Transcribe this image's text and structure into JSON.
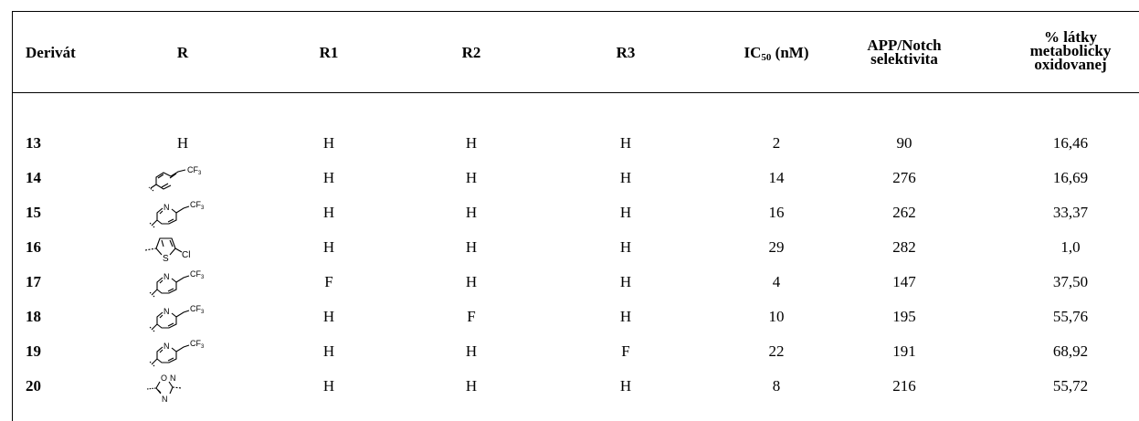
{
  "header": {
    "derivat": "Derivát",
    "r": "R",
    "r1": "R1",
    "r2": "R2",
    "r3": "R3",
    "ic50_main": "IC",
    "ic50_sub": "50",
    "ic50_unit": " (nM)",
    "selectivity_line1": "APP/Notch",
    "selectivity_line2": "selektivita",
    "oxidized_line1": "% látky",
    "oxidized_line2": "metabolicky",
    "oxidized_line3": "oxidovanej"
  },
  "rows": [
    {
      "id": "13",
      "r": "H",
      "r_struct": "none",
      "r1": "H",
      "r2": "H",
      "r3": "H",
      "ic50": "2",
      "sel": "90",
      "ox": "16,46"
    },
    {
      "id": "14",
      "r": "",
      "r_struct": "phenyl-cf3",
      "r1": "H",
      "r2": "H",
      "r3": "H",
      "ic50": "14",
      "sel": "276",
      "ox": "16,69"
    },
    {
      "id": "15",
      "r": "",
      "r_struct": "pyridyl-cf3",
      "r1": "H",
      "r2": "H",
      "r3": "H",
      "ic50": "16",
      "sel": "262",
      "ox": "33,37"
    },
    {
      "id": "16",
      "r": "",
      "r_struct": "chlorothiophene",
      "r1": "H",
      "r2": "H",
      "r3": "H",
      "ic50": "29",
      "sel": "282",
      "ox": "1,0"
    },
    {
      "id": "17",
      "r": "",
      "r_struct": "pyridyl-cf3",
      "r1": "F",
      "r2": "H",
      "r3": "H",
      "ic50": "4",
      "sel": "147",
      "ox": "37,50"
    },
    {
      "id": "18",
      "r": "",
      "r_struct": "pyridyl-cf3",
      "r1": "H",
      "r2": "F",
      "r3": "H",
      "ic50": "10",
      "sel": "195",
      "ox": "55,76"
    },
    {
      "id": "19",
      "r": "",
      "r_struct": "pyridyl-cf3",
      "r1": "H",
      "r2": "H",
      "r3": "F",
      "ic50": "22",
      "sel": "191",
      "ox": "68,92"
    },
    {
      "id": "20",
      "r": "",
      "r_struct": "oxadiazole",
      "r1": "H",
      "r2": "H",
      "r3": "H",
      "ic50": "8",
      "sel": "216",
      "ox": "55,72"
    }
  ],
  "struct_labels": {
    "cf3": "CF",
    "cf3_sub": "3",
    "n": "N",
    "s": "S",
    "cl": "Cl",
    "o": "O"
  }
}
